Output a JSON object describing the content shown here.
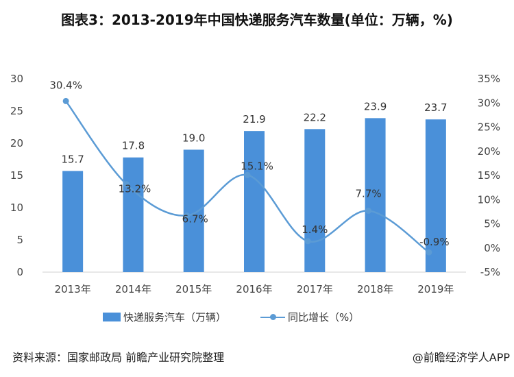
{
  "title": "图表3：2013-2019年中国快递服务汽车数量(单位：万辆，%)",
  "source": "资料来源：国家邮政局 前瞻产业研究院整理",
  "brand": "@前瞻经济学人APP",
  "colors": {
    "bar": "#4a90d9",
    "line": "#5b9bd5",
    "grid": "#e6e6e6"
  },
  "chart_data": {
    "type": "bar+line",
    "categories": [
      "2013年",
      "2014年",
      "2015年",
      "2016年",
      "2017年",
      "2018年",
      "2019年"
    ],
    "series": [
      {
        "name": "快递服务汽车（万辆）",
        "type": "bar",
        "axis": "left",
        "values": [
          15.7,
          17.8,
          19.0,
          21.9,
          22.2,
          23.9,
          23.7
        ],
        "labels": [
          "15.7",
          "17.8",
          "19.0",
          "21.9",
          "22.2",
          "23.9",
          "23.7"
        ]
      },
      {
        "name": "同比增长（%）",
        "type": "line",
        "axis": "right",
        "values": [
          30.4,
          13.2,
          6.7,
          15.1,
          1.4,
          7.7,
          -0.9
        ],
        "labels": [
          "30.4%",
          "13.2%",
          "6.7%",
          "15.1%",
          "1.4%",
          "7.7%",
          "-0.9%"
        ]
      }
    ],
    "y_left": {
      "ylim": [
        0,
        30
      ],
      "ticks": [
        "0",
        "5",
        "10",
        "15",
        "20",
        "25",
        "30"
      ]
    },
    "y_right": {
      "ylim": [
        -5,
        35
      ],
      "ticks": [
        "-5%",
        "0%",
        "5%",
        "10%",
        "15%",
        "20%",
        "25%",
        "30%",
        "35%"
      ]
    },
    "legend_position": "bottom"
  }
}
